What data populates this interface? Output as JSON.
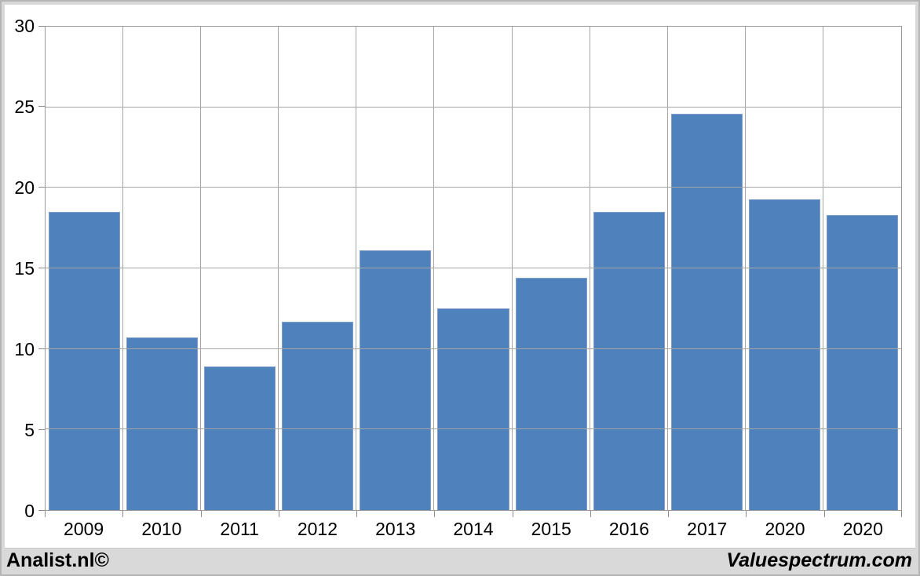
{
  "chart_data": {
    "type": "bar",
    "title": "",
    "categories": [
      "2009",
      "2010",
      "2011",
      "2012",
      "2013",
      "2014",
      "2015",
      "2016",
      "2017",
      "2020",
      "2020"
    ],
    "values": [
      18.5,
      10.7,
      8.9,
      11.7,
      16.1,
      12.5,
      14.4,
      18.5,
      24.6,
      19.3,
      18.3
    ],
    "xlabel": "",
    "ylabel": "",
    "ylim": [
      0,
      30
    ],
    "y_ticks": [
      0,
      5,
      10,
      15,
      20,
      25,
      30
    ],
    "grid": true,
    "legend_position": "none",
    "bar_color": "#4f81bd"
  },
  "footer": {
    "left": "Analist.nl©",
    "right": "Valuespectrum.com"
  },
  "colors": {
    "bar": "#4f81bd",
    "bar_border": "#7f9fcb",
    "gridline": "#a6a6a6",
    "axis_tick": "#8c8c8c",
    "plot_border": "#9b9b9b",
    "frame": "#d9d9d9",
    "frame_border": "#b5b5b5",
    "footer_background": "#d9d9d9",
    "text": "#000000"
  }
}
